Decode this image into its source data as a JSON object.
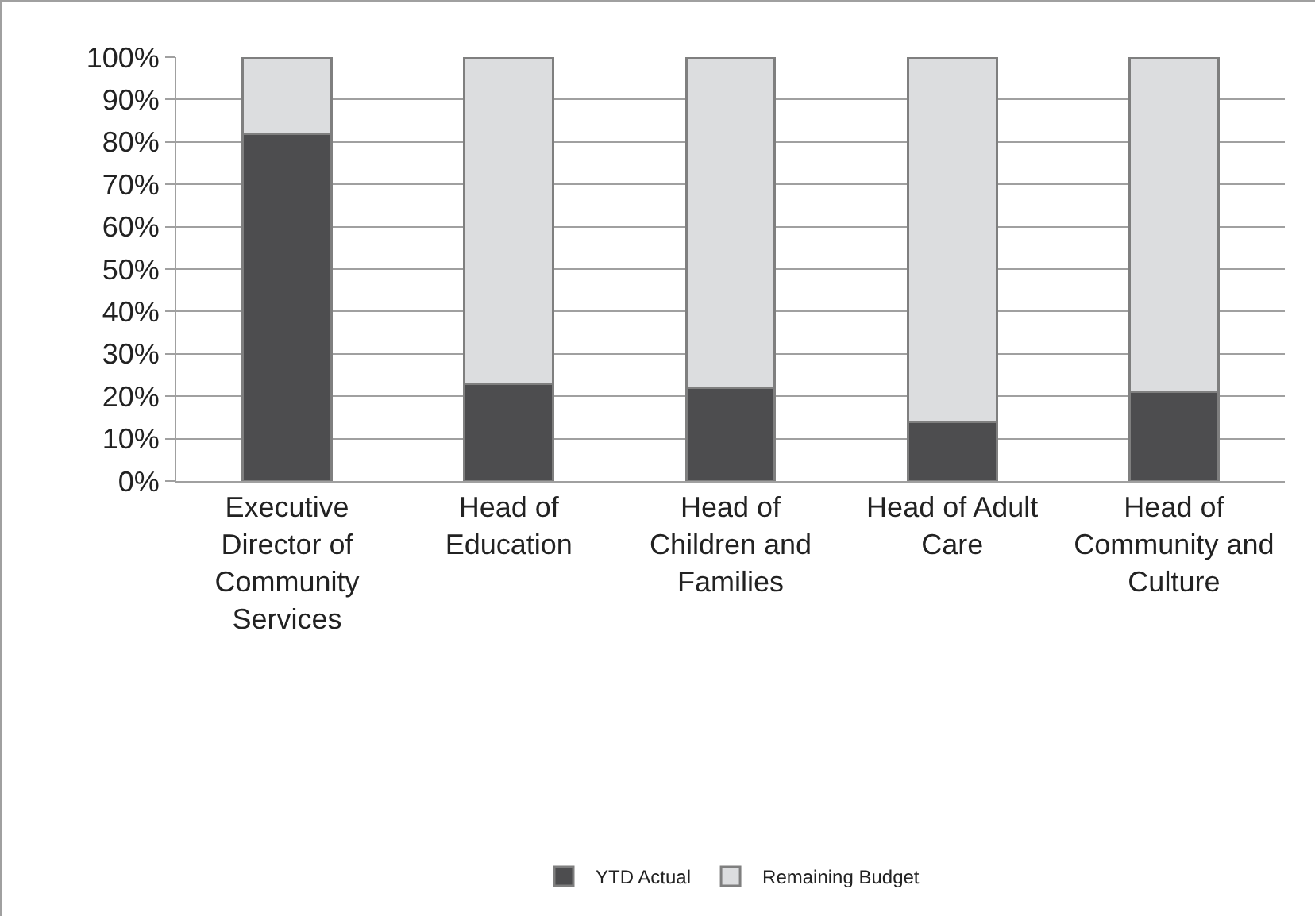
{
  "chart_data": {
    "type": "bar",
    "stacked": true,
    "categories": [
      "Executive Director of Community Services",
      "Head of Education",
      "Head of Children and Families",
      "Head of Adult Care",
      "Head of Community and Culture"
    ],
    "series": [
      {
        "name": "YTD Actual",
        "color": "#4d4d4f",
        "values": [
          82,
          23,
          22,
          14,
          21
        ]
      },
      {
        "name": "Remaining Budget",
        "color": "#dcdddf",
        "values": [
          18,
          77,
          78,
          86,
          79
        ]
      }
    ],
    "ylim": [
      0,
      100
    ],
    "yticks": [
      {
        "value": 0,
        "label": "0%"
      },
      {
        "value": 10,
        "label": "10%"
      },
      {
        "value": 20,
        "label": "20%"
      },
      {
        "value": 30,
        "label": "30%"
      },
      {
        "value": 40,
        "label": "40%"
      },
      {
        "value": 50,
        "label": "50%"
      },
      {
        "value": 60,
        "label": "60%"
      },
      {
        "value": 70,
        "label": "70%"
      },
      {
        "value": 80,
        "label": "80%"
      },
      {
        "value": 90,
        "label": "90%"
      },
      {
        "value": 100,
        "label": "100%"
      }
    ],
    "grid": "y",
    "legend": "bottom"
  }
}
